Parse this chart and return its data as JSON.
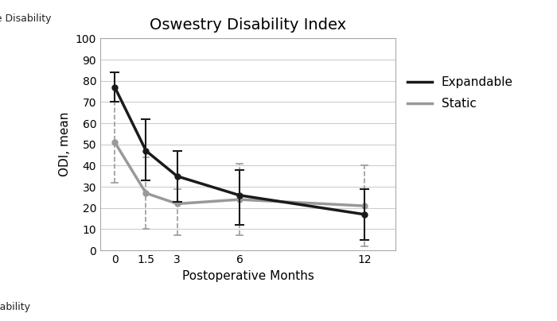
{
  "title": "Oswestry Disability Index",
  "xlabel": "Postoperative Months",
  "ylabel": "ODI, mean",
  "x": [
    0,
    1.5,
    3,
    6,
    12
  ],
  "expandable_y": [
    77,
    47,
    35,
    26,
    17
  ],
  "expandable_yerr_upper": [
    7,
    15,
    12,
    12,
    12
  ],
  "expandable_yerr_lower": [
    7,
    14,
    12,
    14,
    12
  ],
  "static_y": [
    51,
    27,
    22,
    24,
    21
  ],
  "static_yerr_upper": [
    19,
    17,
    7,
    17,
    19
  ],
  "static_yerr_lower": [
    19,
    17,
    15,
    17,
    19
  ],
  "ylim": [
    0,
    100
  ],
  "yticks": [
    0,
    10,
    20,
    30,
    40,
    50,
    60,
    70,
    80,
    90,
    100
  ],
  "expandable_color": "#1a1a1a",
  "static_color": "#999999",
  "severe_disability_label": "Severe Disability",
  "no_disability_label": "No Disability",
  "legend_expandable": "Expandable",
  "legend_static": "Static",
  "bg_color": "#ffffff",
  "grid_color": "#cccccc",
  "line_width": 2.5,
  "marker_size": 5,
  "title_fontsize": 14,
  "axis_fontsize": 11,
  "tick_fontsize": 10,
  "label_fontsize": 9
}
